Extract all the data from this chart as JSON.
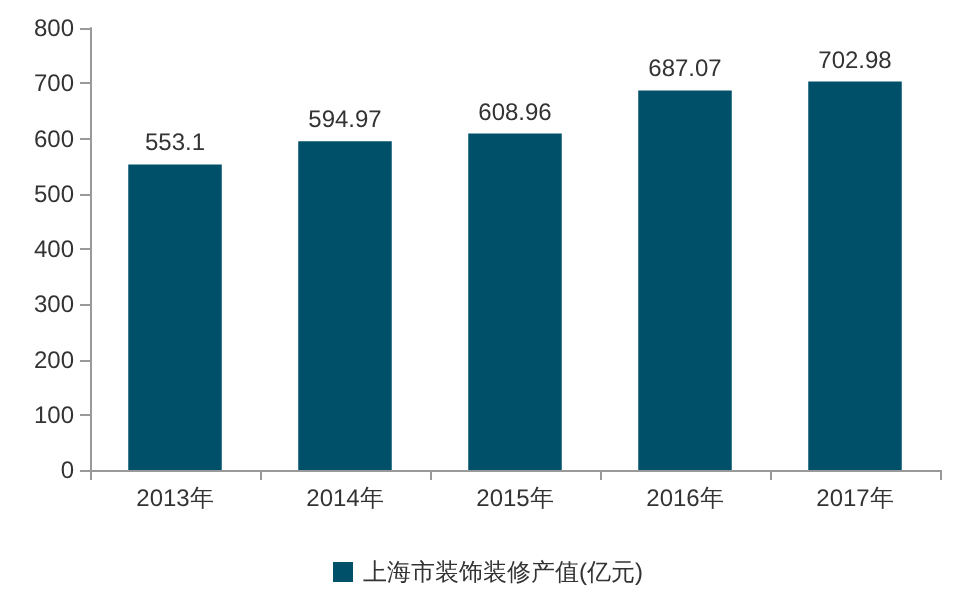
{
  "chart_data": {
    "type": "bar",
    "categories": [
      "2013年",
      "2014年",
      "2015年",
      "2016年",
      "2017年"
    ],
    "series": [
      {
        "name": "上海市装饰装修产值(亿元)",
        "color": "#00506a",
        "values": [
          553.1,
          594.97,
          608.96,
          687.07,
          702.98
        ]
      }
    ],
    "ylim": [
      0,
      800
    ],
    "yticks": [
      0,
      100,
      200,
      300,
      400,
      500,
      600,
      700,
      800
    ],
    "grid": false,
    "legend": "bottom",
    "data_labels": true
  }
}
